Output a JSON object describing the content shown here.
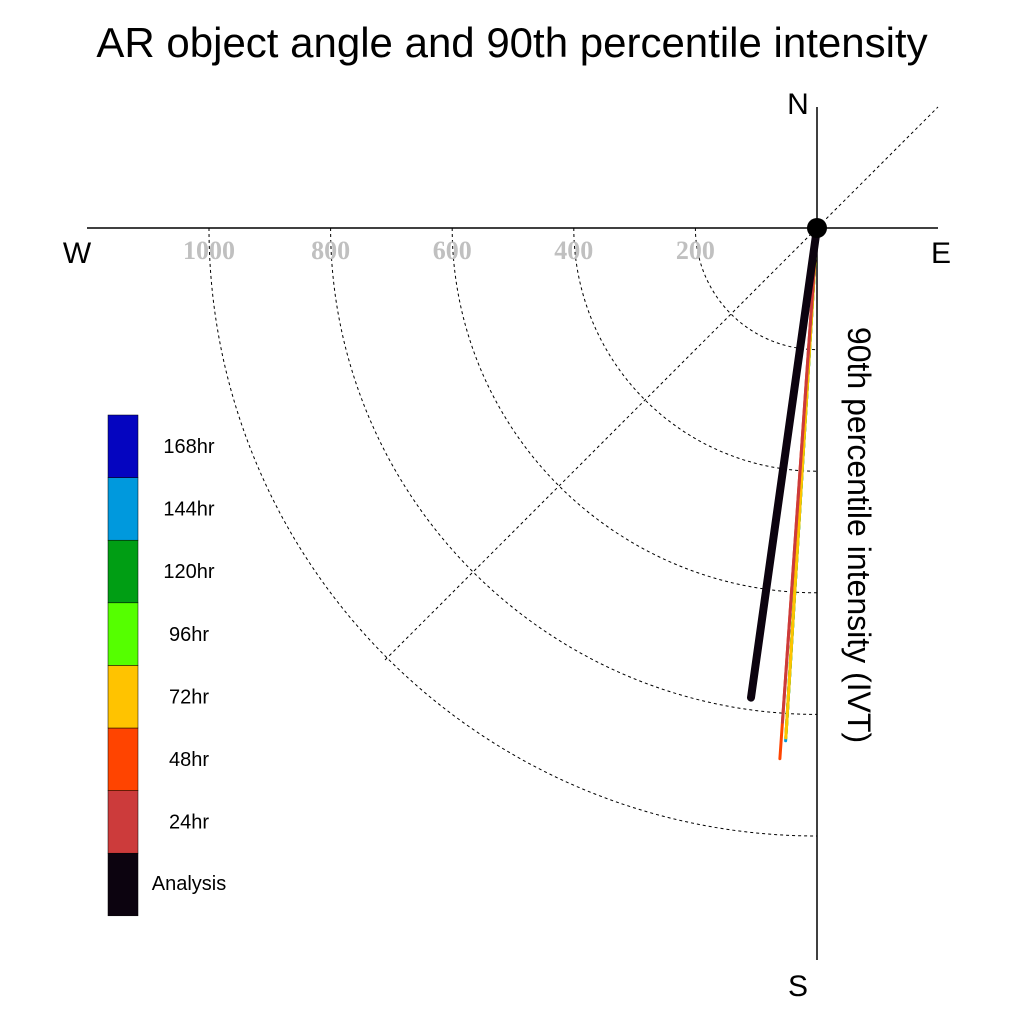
{
  "chart_data": {
    "type": "polar-vector",
    "title": "AR object angle and 90th percentile intensity",
    "ylabel": "90th percentile intensity (IVT)",
    "compass": {
      "north": "N",
      "south": "S",
      "east": "E",
      "west": "W"
    },
    "radial_ticks": [
      {
        "value": 200,
        "label": "200"
      },
      {
        "value": 400,
        "label": "400"
      },
      {
        "value": 600,
        "label": "600"
      },
      {
        "value": 800,
        "label": "800"
      },
      {
        "value": 1000,
        "label": "1000"
      }
    ],
    "radial_range": [
      0,
      1000
    ],
    "grid": "dashed quarter circles in the SW quadrant",
    "legend_placement": "left",
    "series": [
      {
        "name": "Analysis",
        "color": "#0c030f",
        "angle_deg": 188,
        "intensity": 780
      },
      {
        "name": "24hr",
        "color": "#cc3b3b",
        "angle_deg": 184,
        "intensity": 815
      },
      {
        "name": "48hr",
        "color": "#ff4400",
        "angle_deg": 184,
        "intensity": 875
      },
      {
        "name": "72hr",
        "color": "#ffc300",
        "angle_deg": 183.5,
        "intensity": 840
      },
      {
        "name": "96hr",
        "color": "#55ff00",
        "angle_deg": 183.5,
        "intensity": 840
      },
      {
        "name": "120hr",
        "color": "#009e14",
        "angle_deg": 183.5,
        "intensity": 835
      },
      {
        "name": "144hr",
        "color": "#0099dd",
        "angle_deg": 183.5,
        "intensity": 845
      },
      {
        "name": "168hr",
        "color": "#0505c0",
        "angle_deg": 183.5,
        "intensity": 810
      }
    ]
  }
}
